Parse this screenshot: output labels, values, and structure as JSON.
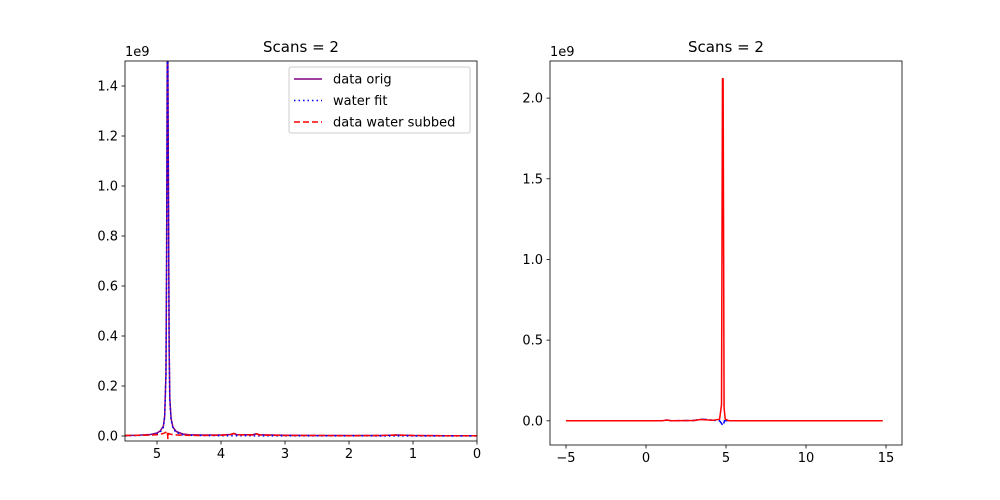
{
  "chart_data": [
    {
      "type": "line",
      "title": "Scans = 2",
      "offset_text": "1e9",
      "x_inverted": true,
      "xlim": [
        5.5,
        0
      ],
      "ylim": [
        -0.02,
        1.5
      ],
      "xticks": [
        5,
        4,
        3,
        2,
        1,
        0
      ],
      "yticks": [
        0.0,
        0.2,
        0.4,
        0.6,
        0.8,
        1.0,
        1.2,
        1.4
      ],
      "legend_position": "top-right",
      "series": [
        {
          "name": "data orig",
          "color": "#800080",
          "style": "solid",
          "x": [
            5.5,
            5.3,
            5.1,
            5.0,
            4.95,
            4.9,
            4.88,
            4.86,
            4.85,
            4.84,
            4.83,
            4.82,
            4.81,
            4.8,
            4.78,
            4.75,
            4.7,
            4.6,
            4.5,
            4.3,
            4.0,
            3.85,
            3.8,
            3.75,
            3.5,
            3.45,
            3.4,
            3.0,
            2.5,
            2.0,
            1.5,
            1.25,
            1.0,
            0.5,
            0.0
          ],
          "y": [
            0.002,
            0.003,
            0.006,
            0.012,
            0.02,
            0.04,
            0.08,
            0.25,
            0.7,
            1.5,
            1.5,
            0.9,
            0.35,
            0.15,
            0.07,
            0.035,
            0.018,
            0.008,
            0.005,
            0.004,
            0.004,
            0.006,
            0.01,
            0.005,
            0.005,
            0.009,
            0.005,
            0.003,
            0.002,
            0.002,
            0.002,
            0.004,
            0.002,
            0.001,
            0.001
          ]
        },
        {
          "name": "water fit",
          "color": "#0000ff",
          "style": "dotted",
          "x": [
            5.5,
            5.3,
            5.1,
            5.0,
            4.95,
            4.9,
            4.88,
            4.86,
            4.85,
            4.84,
            4.83,
            4.82,
            4.81,
            4.8,
            4.78,
            4.75,
            4.7,
            4.6,
            4.5,
            4.3,
            4.0,
            3.0,
            2.0,
            1.0,
            0.0
          ],
          "y": [
            0.001,
            0.002,
            0.004,
            0.008,
            0.015,
            0.035,
            0.075,
            0.24,
            0.69,
            1.5,
            1.5,
            0.89,
            0.34,
            0.14,
            0.065,
            0.03,
            0.014,
            0.005,
            0.003,
            0.002,
            0.001,
            0.0005,
            0.0003,
            0.0002,
            0.0001
          ]
        },
        {
          "name": "data water subbed",
          "color": "#ff0000",
          "style": "dashed",
          "x": [
            5.5,
            5.2,
            5.0,
            4.9,
            4.86,
            4.84,
            4.83,
            4.82,
            4.8,
            4.75,
            4.6,
            4.3,
            4.0,
            3.85,
            3.8,
            3.75,
            3.5,
            3.45,
            3.4,
            3.0,
            2.5,
            2.0,
            1.5,
            1.25,
            1.0,
            0.5,
            0.0
          ],
          "y": [
            0.002,
            0.003,
            0.005,
            0.01,
            0.015,
            0.02,
            -0.01,
            0.01,
            0.008,
            0.005,
            0.003,
            0.002,
            0.003,
            0.006,
            0.01,
            0.005,
            0.004,
            0.009,
            0.004,
            0.002,
            0.002,
            0.001,
            0.002,
            0.004,
            0.002,
            0.001,
            0.001
          ]
        }
      ]
    },
    {
      "type": "line",
      "title": "Scans = 2",
      "offset_text": "1e9",
      "x_inverted": false,
      "xlim": [
        -6,
        16
      ],
      "ylim": [
        -0.15,
        2.23
      ],
      "xticks": [
        -5,
        0,
        5,
        10,
        15
      ],
      "yticks": [
        0.0,
        0.5,
        1.0,
        1.5,
        2.0
      ],
      "series": [
        {
          "color": "#0000ff",
          "style": "dashed",
          "x": [
            -5,
            -3,
            -1,
            1,
            1.3,
            1.6,
            3,
            3.4,
            3.8,
            4.2,
            4.6,
            4.75,
            4.8,
            4.85,
            4.9,
            5.2,
            6,
            8,
            10,
            12,
            14.8
          ],
          "y": [
            0.0,
            0.0,
            0.0,
            0.0,
            0.005,
            0.0,
            0.002,
            0.01,
            0.008,
            0.003,
            0.0,
            -0.02,
            -0.03,
            -0.02,
            0.0,
            0.0,
            0.0,
            0.0,
            0.0,
            0.0,
            0.0
          ]
        },
        {
          "color": "#ff0000",
          "style": "solid",
          "x": [
            -5,
            -3,
            -1,
            1,
            1.3,
            1.6,
            3,
            3.4,
            3.8,
            4.2,
            4.6,
            4.72,
            4.78,
            4.82,
            4.88,
            4.95,
            5.2,
            6,
            8,
            10,
            12,
            14.8
          ],
          "y": [
            0.0,
            0.0,
            0.0,
            0.0,
            0.004,
            0.0,
            0.002,
            0.008,
            0.006,
            0.003,
            0.01,
            0.1,
            2.12,
            2.12,
            0.08,
            0.01,
            0.0,
            0.0,
            0.0,
            0.0,
            0.0,
            0.0
          ]
        }
      ]
    }
  ]
}
